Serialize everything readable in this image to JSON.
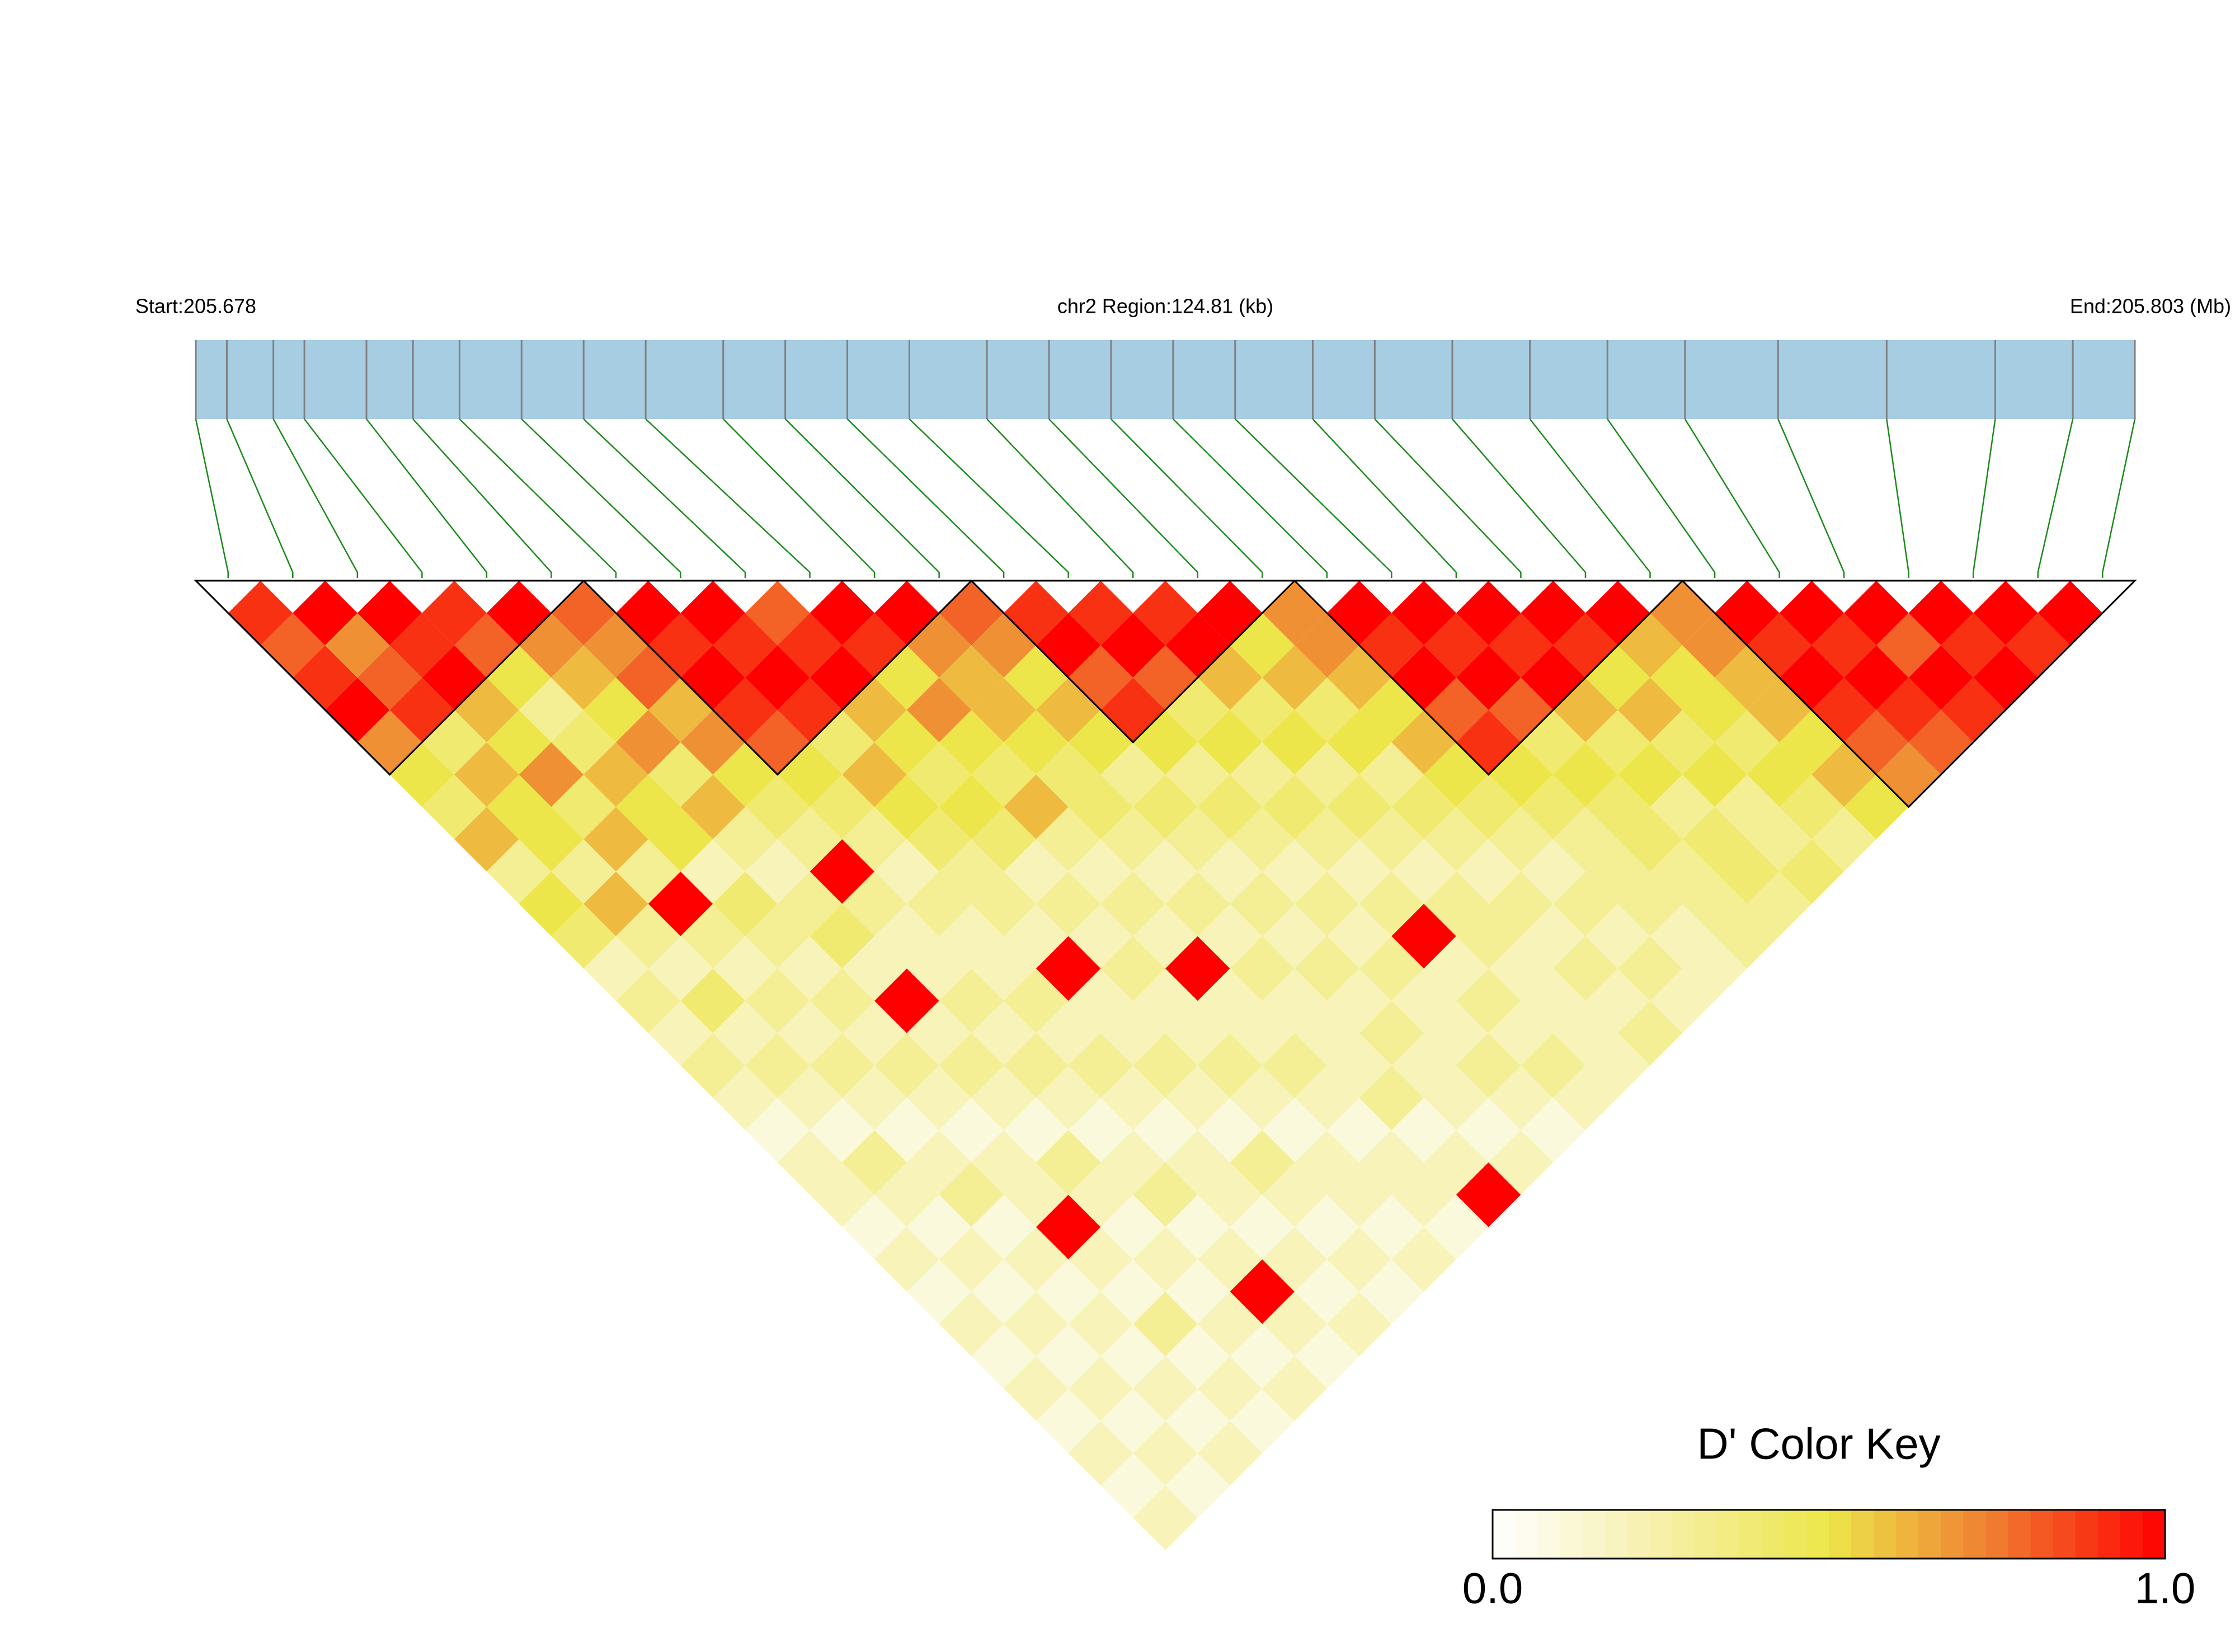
{
  "chart_data": {
    "type": "ld_heatmap",
    "start_label": "Start:205.678",
    "region_label": "chr2 Region:124.81 (kb)",
    "end_label": "End:205.803 (Mb)",
    "key_title": "D' Color Key",
    "key_ticks": [
      {
        "value": 0,
        "label": "0.0"
      },
      {
        "value": 1,
        "label": "1.0"
      }
    ],
    "xlim": [
      205.678,
      205.803
    ],
    "track_color": "#a6cde2",
    "snp_color": "#808080",
    "connector_color": "#1a8a1a",
    "block_color": "#000000",
    "color_stops": [
      "#ffffff",
      "#f6f0a8",
      "#ece64a",
      "#f07a30",
      "#ff0000"
    ],
    "snp_positions": [
      205.678,
      205.68,
      205.683,
      205.685,
      205.689,
      205.692,
      205.695,
      205.699,
      205.703,
      205.707,
      205.712,
      205.716,
      205.72,
      205.724,
      205.729,
      205.733,
      205.737,
      205.741,
      205.745,
      205.75,
      205.754,
      205.759,
      205.764,
      205.769,
      205.774,
      205.78,
      205.787,
      205.794,
      205.799,
      205.803
    ],
    "blocks": [
      [
        0,
        5
      ],
      [
        6,
        11
      ],
      [
        12,
        16
      ],
      [
        17,
        22
      ],
      [
        23,
        29
      ]
    ],
    "dprime": [
      [
        0.9
      ],
      [
        0.8,
        1.0
      ],
      [
        0.9,
        0.7,
        1.0
      ],
      [
        1.0,
        0.8,
        0.9,
        0.9
      ],
      [
        0.7,
        0.9,
        1.0,
        0.8,
        1.0
      ],
      [
        0.5,
        0.4,
        0.6,
        0.5,
        0.7,
        0.8
      ],
      [
        0.4,
        0.6,
        0.5,
        0.3,
        0.6,
        0.7,
        1.0
      ],
      [
        0.6,
        0.5,
        0.7,
        0.4,
        0.5,
        0.8,
        0.9,
        1.0
      ],
      [
        0.3,
        0.5,
        0.4,
        0.6,
        0.7,
        0.6,
        1.0,
        0.9,
        0.8
      ],
      [
        0.5,
        0.3,
        0.6,
        0.5,
        0.4,
        0.7,
        0.9,
        1.0,
        0.9,
        1.0
      ],
      [
        0.4,
        0.6,
        0.3,
        0.5,
        0.6,
        0.5,
        0.8,
        0.9,
        1.0,
        0.9,
        1.0
      ],
      [
        0.2,
        0.3,
        1.0,
        0.2,
        0.3,
        0.4,
        0.5,
        0.4,
        0.6,
        0.5,
        0.7,
        0.8
      ],
      [
        0.3,
        0.2,
        0.3,
        0.4,
        0.2,
        0.3,
        0.4,
        0.6,
        0.5,
        0.7,
        0.6,
        0.7,
        0.9
      ],
      [
        0.2,
        0.4,
        0.2,
        0.3,
        0.3,
        1.0,
        0.3,
        0.5,
        0.4,
        0.5,
        0.6,
        0.5,
        1.0,
        0.9
      ],
      [
        0.3,
        0.2,
        0.3,
        0.2,
        0.4,
        0.3,
        0.2,
        0.4,
        0.5,
        0.4,
        0.5,
        0.6,
        0.8,
        1.0,
        0.9
      ],
      [
        0.2,
        0.3,
        0.2,
        0.3,
        0.2,
        0.2,
        0.3,
        0.3,
        0.4,
        0.6,
        0.4,
        0.5,
        0.9,
        0.8,
        1.0,
        1.0
      ],
      [
        0.1,
        0.2,
        0.3,
        0.2,
        1.0,
        0.2,
        0.2,
        0.3,
        0.2,
        0.3,
        0.4,
        0.3,
        0.5,
        0.4,
        0.6,
        0.5,
        0.7
      ],
      [
        0.2,
        0.1,
        0.2,
        0.3,
        0.2,
        0.3,
        0.2,
        0.2,
        0.3,
        0.2,
        0.3,
        0.4,
        0.3,
        0.5,
        0.4,
        0.6,
        0.7,
        1.0
      ],
      [
        0.2,
        0.3,
        0.1,
        0.2,
        0.3,
        0.2,
        0.3,
        1.0,
        0.2,
        0.3,
        0.2,
        0.3,
        0.4,
        0.3,
        0.5,
        0.4,
        0.6,
        0.9,
        1.0
      ],
      [
        0.1,
        0.2,
        0.2,
        0.1,
        0.2,
        0.3,
        0.2,
        0.2,
        0.3,
        0.2,
        0.3,
        0.2,
        0.3,
        0.4,
        0.3,
        0.5,
        0.5,
        1.0,
        0.9,
        1.0
      ],
      [
        0.2,
        0.1,
        0.3,
        0.2,
        0.1,
        0.2,
        0.3,
        0.2,
        0.2,
        1.0,
        0.2,
        0.3,
        0.2,
        0.3,
        0.4,
        0.3,
        0.6,
        0.8,
        1.0,
        0.9,
        1.0
      ],
      [
        0.1,
        0.2,
        0.1,
        0.2,
        0.3,
        0.1,
        0.2,
        0.3,
        0.2,
        0.2,
        0.3,
        0.2,
        0.3,
        0.2,
        0.3,
        0.4,
        0.5,
        0.9,
        0.8,
        1.0,
        0.9,
        1.0
      ],
      [
        0.2,
        0.1,
        0.2,
        1.0,
        0.2,
        0.2,
        0.1,
        0.2,
        0.3,
        0.2,
        0.2,
        0.3,
        0.2,
        0.3,
        0.2,
        0.3,
        0.4,
        0.5,
        0.4,
        0.6,
        0.5,
        0.6,
        0.7
      ],
      [
        0.1,
        0.2,
        0.1,
        0.2,
        0.1,
        0.3,
        0.2,
        0.1,
        0.2,
        0.3,
        0.2,
        0.2,
        0.3,
        1.0,
        0.3,
        0.2,
        0.3,
        0.4,
        0.5,
        0.4,
        0.6,
        0.5,
        0.7,
        1.0
      ],
      [
        0.2,
        0.1,
        0.2,
        0.1,
        0.2,
        0.1,
        0.2,
        0.3,
        0.1,
        0.2,
        0.2,
        0.3,
        0.2,
        0.2,
        0.3,
        0.3,
        0.2,
        0.3,
        0.4,
        0.5,
        0.4,
        0.5,
        0.6,
        0.9,
        1.0
      ],
      [
        0.1,
        0.2,
        0.1,
        0.3,
        0.1,
        0.2,
        0.1,
        0.2,
        0.2,
        0.1,
        0.3,
        0.2,
        0.2,
        0.3,
        0.2,
        0.2,
        0.3,
        0.3,
        0.4,
        0.3,
        0.5,
        0.4,
        0.6,
        1.0,
        0.9,
        1.0
      ],
      [
        0.2,
        0.1,
        0.2,
        0.1,
        0.2,
        1.0,
        0.2,
        0.1,
        0.2,
        0.2,
        0.1,
        0.2,
        0.3,
        0.2,
        0.2,
        0.3,
        0.2,
        0.3,
        0.3,
        0.4,
        0.3,
        0.5,
        0.5,
        0.9,
        1.0,
        0.8,
        1.0
      ],
      [
        0.1,
        0.2,
        0.1,
        0.2,
        0.1,
        0.2,
        0.1,
        0.2,
        0.1,
        0.2,
        0.2,
        0.1,
        0.2,
        0.3,
        0.2,
        0.2,
        0.3,
        0.2,
        0.3,
        0.4,
        0.3,
        0.4,
        0.6,
        0.8,
        0.9,
        1.0,
        0.9,
        1.0
      ],
      [
        0.2,
        0.1,
        0.2,
        0.1,
        0.2,
        0.1,
        0.2,
        0.1,
        0.2,
        0.1,
        1.0,
        0.2,
        0.1,
        0.2,
        0.2,
        0.3,
        0.2,
        0.2,
        0.3,
        0.3,
        0.4,
        0.3,
        0.5,
        0.7,
        0.8,
        0.9,
        1.0,
        0.9,
        1.0
      ]
    ]
  }
}
